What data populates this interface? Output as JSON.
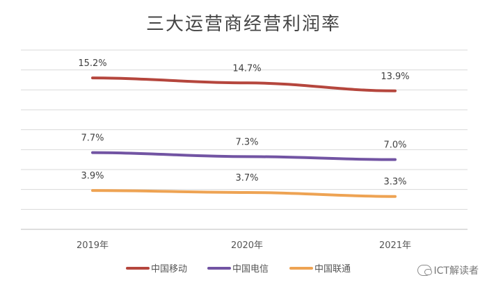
{
  "chart_data": {
    "type": "line",
    "title": "三大运营商经营利润率",
    "categories": [
      "2019年",
      "2020年",
      "2021年"
    ],
    "series": [
      {
        "name": "中国移动",
        "color": "#b5463d",
        "values": [
          15.2,
          14.7,
          13.9
        ],
        "labels": [
          "15.2%",
          "14.7%",
          "13.9%"
        ]
      },
      {
        "name": "中国电信",
        "color": "#7254a3",
        "values": [
          7.7,
          7.3,
          7.0
        ],
        "labels": [
          "7.7%",
          "7.3%",
          "7.0%"
        ]
      },
      {
        "name": "中国联通",
        "color": "#eea353",
        "values": [
          3.9,
          3.7,
          3.3
        ],
        "labels": [
          "3.9%",
          "3.7%",
          "3.3%"
        ]
      }
    ],
    "ylim": [
      0,
      18
    ],
    "gridlines": true,
    "legend": "bottom",
    "xlabel": "",
    "ylabel": ""
  },
  "watermark": "ICT解读者",
  "watermark_icon": "wechat-icon"
}
